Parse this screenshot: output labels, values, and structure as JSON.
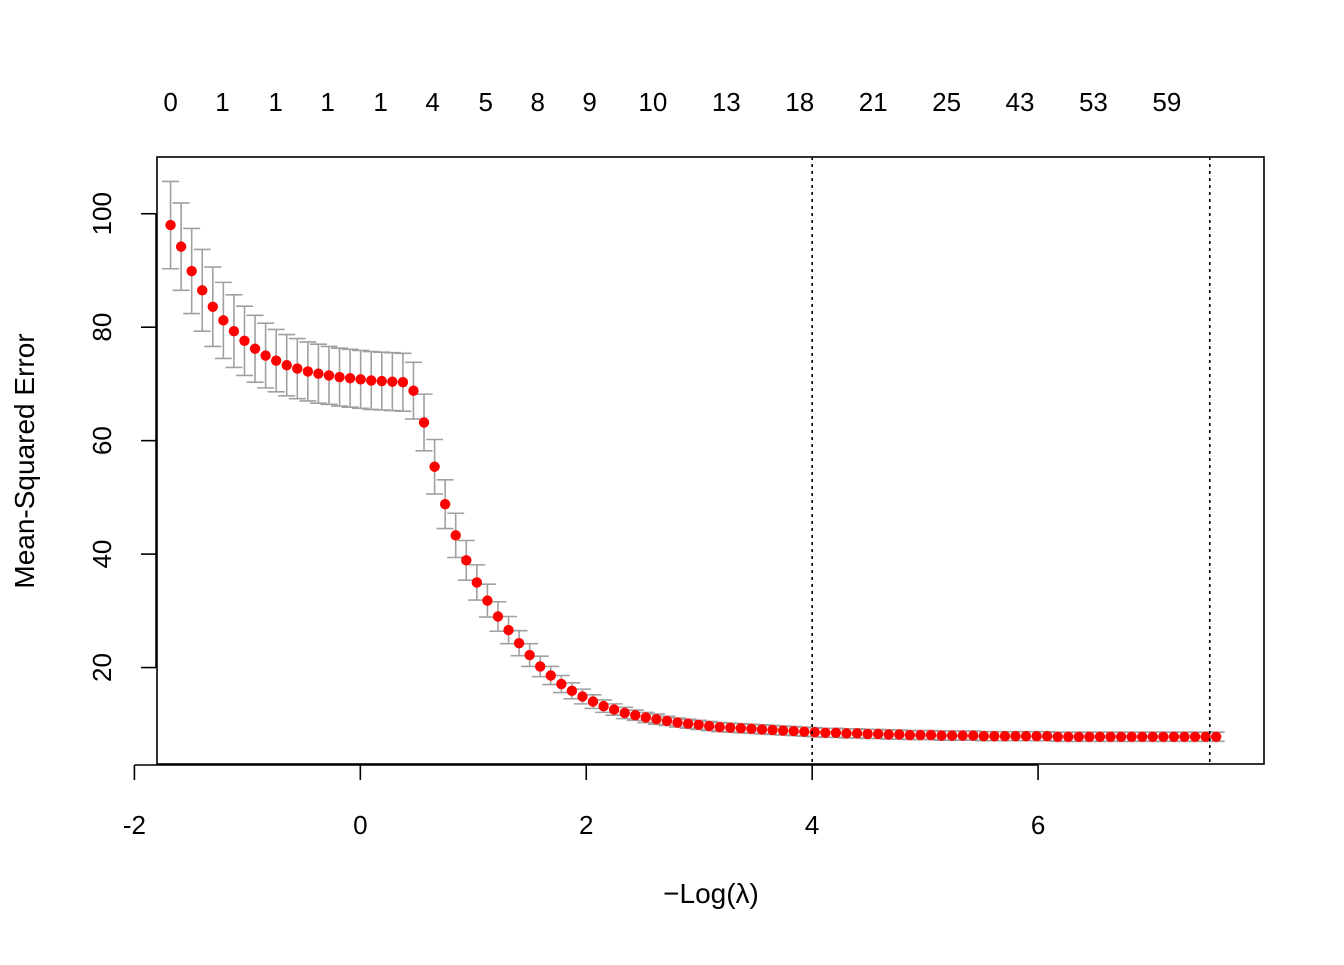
{
  "chart_data": {
    "type": "scatter",
    "title": "",
    "xlabel": "−Log(λ)",
    "ylabel": "Mean-Squared Error",
    "xlim": [
      -1.8,
      8.0
    ],
    "ylim": [
      3,
      110
    ],
    "x_ticks": [
      {
        "value": -2,
        "label": "-2"
      },
      {
        "value": 0,
        "label": "0"
      },
      {
        "value": 2,
        "label": "2"
      },
      {
        "value": 4,
        "label": "4"
      },
      {
        "value": 6,
        "label": "6"
      }
    ],
    "y_ticks": [
      {
        "value": 20,
        "label": "20"
      },
      {
        "value": 40,
        "label": "40"
      },
      {
        "value": 60,
        "label": "60"
      },
      {
        "value": 80,
        "label": "80"
      },
      {
        "value": 100,
        "label": "100"
      }
    ],
    "top_axis_labels": [
      {
        "x": -1.68,
        "label": "0"
      },
      {
        "x": -1.22,
        "label": "1"
      },
      {
        "x": -0.75,
        "label": "1"
      },
      {
        "x": -0.29,
        "label": "1"
      },
      {
        "x": 0.18,
        "label": "1"
      },
      {
        "x": 0.64,
        "label": "4"
      },
      {
        "x": 1.11,
        "label": "5"
      },
      {
        "x": 1.57,
        "label": "8"
      },
      {
        "x": 2.03,
        "label": "9"
      },
      {
        "x": 2.59,
        "label": "10"
      },
      {
        "x": 3.24,
        "label": "13"
      },
      {
        "x": 3.89,
        "label": "18"
      },
      {
        "x": 4.54,
        "label": "21"
      },
      {
        "x": 5.19,
        "label": "25"
      },
      {
        "x": 5.84,
        "label": "43"
      },
      {
        "x": 6.49,
        "label": "53"
      },
      {
        "x": 7.14,
        "label": "59"
      }
    ],
    "vlines": [
      4.0,
      7.52
    ],
    "grid": false,
    "legend": "none",
    "colors": {
      "points": "#ff0000",
      "errorbars": "#a0a0a0",
      "vlines": "#000000",
      "frame": "#000000"
    },
    "x_start": -1.68,
    "x_step": 0.0935,
    "mse": [
      98.0,
      94.2,
      89.9,
      86.5,
      83.6,
      81.2,
      79.3,
      77.6,
      76.2,
      75.0,
      74.1,
      73.3,
      72.7,
      72.2,
      71.8,
      71.5,
      71.2,
      71.0,
      70.8,
      70.6,
      70.5,
      70.4,
      70.3,
      68.8,
      63.2,
      55.4,
      48.8,
      43.3,
      38.9,
      35.0,
      31.8,
      29.0,
      26.6,
      24.3,
      22.2,
      20.2,
      18.6,
      17.1,
      15.9,
      14.9,
      14.0,
      13.2,
      12.6,
      12.0,
      11.6,
      11.2,
      10.9,
      10.6,
      10.3,
      10.1,
      9.9,
      9.7,
      9.5,
      9.4,
      9.3,
      9.2,
      9.1,
      9.0,
      8.9,
      8.8,
      8.7,
      8.6,
      8.5,
      8.5,
      8.4,
      8.4,
      8.3,
      8.3,
      8.2,
      8.2,
      8.1,
      8.1,
      8.1,
      8.0,
      8.0,
      8.0,
      8.0,
      7.9,
      7.9,
      7.9,
      7.9,
      7.9,
      7.9,
      7.9,
      7.8,
      7.8,
      7.8,
      7.8,
      7.8,
      7.8,
      7.8,
      7.8,
      7.8,
      7.8,
      7.8,
      7.8,
      7.8,
      7.8,
      7.8,
      7.8
    ],
    "se": [
      7.7,
      7.7,
      7.5,
      7.2,
      7.0,
      6.7,
      6.4,
      6.1,
      5.9,
      5.7,
      5.5,
      5.4,
      5.3,
      5.2,
      5.2,
      5.1,
      5.1,
      5.1,
      5.1,
      5.1,
      5.1,
      5.1,
      5.1,
      5.0,
      5.0,
      4.8,
      4.3,
      3.9,
      3.5,
      3.1,
      2.9,
      2.6,
      2.4,
      2.2,
      2.0,
      1.8,
      1.6,
      1.5,
      1.4,
      1.3,
      1.2,
      1.1,
      1.0,
      1.0,
      0.9,
      0.9,
      0.9,
      0.8,
      0.8,
      0.8,
      0.8,
      0.8,
      0.8,
      0.8,
      0.8,
      0.8,
      0.8,
      0.8,
      0.8,
      0.8,
      0.8,
      0.8,
      0.8,
      0.8,
      0.8,
      0.8,
      0.8,
      0.8,
      0.8,
      0.8,
      0.8,
      0.8,
      0.8,
      0.8,
      0.8,
      0.8,
      0.8,
      0.8,
      0.8,
      0.8,
      0.8,
      0.8,
      0.8,
      0.8,
      0.8,
      0.8,
      0.8,
      0.8,
      0.8,
      0.8,
      0.8,
      0.8,
      0.8,
      0.8,
      0.8,
      0.8,
      0.8,
      0.8,
      0.8,
      0.8
    ]
  }
}
